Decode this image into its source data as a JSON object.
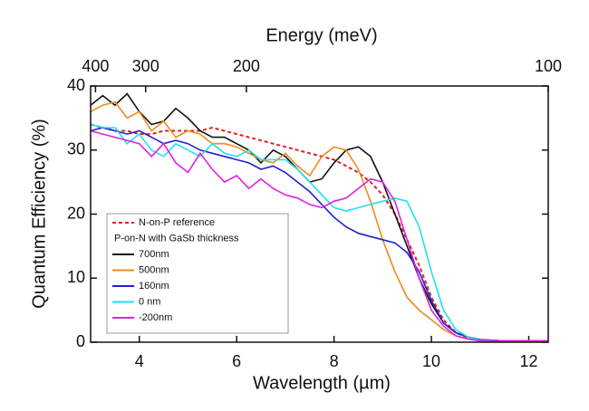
{
  "chart_data": {
    "type": "line",
    "x_label": "Wavelength (µm)",
    "y_label": "Quantum Efficiency (%)",
    "x2_label": "Energy (meV)",
    "xlim": [
      3,
      12.4
    ],
    "xticks": [
      4,
      6,
      8,
      10,
      12
    ],
    "ylim": [
      0,
      40
    ],
    "yticks": [
      0,
      10,
      20,
      30,
      40
    ],
    "x2ticks": [
      {
        "value": 3.1,
        "label": "400"
      },
      {
        "value": 4.13,
        "label": "300"
      },
      {
        "value": 6.2,
        "label": "200"
      },
      {
        "value": 12.4,
        "label": "100"
      }
    ],
    "legend_title": "P-on-N with GaSb thickness",
    "legend_position": "lower left",
    "x": [
      3,
      3.25,
      3.5,
      3.75,
      4,
      4.25,
      4.5,
      4.75,
      5,
      5.25,
      5.5,
      5.75,
      6,
      6.25,
      6.5,
      6.75,
      7,
      7.25,
      7.5,
      7.75,
      8,
      8.25,
      8.5,
      8.75,
      9,
      9.25,
      9.5,
      9.75,
      10,
      10.25,
      10.5,
      10.75,
      11,
      11.5,
      12,
      12.4
    ],
    "series": [
      {
        "name": "N-on-P reference",
        "color": "#e02020",
        "dashed": true,
        "values": [
          34,
          33.5,
          33,
          33,
          32.5,
          32.5,
          33,
          33,
          33,
          33,
          33.5,
          33,
          32.5,
          32,
          31.5,
          31,
          30.5,
          30,
          29.5,
          29,
          28.5,
          27.5,
          26.5,
          25,
          23,
          20,
          16,
          12,
          7,
          3.5,
          1.5,
          0.7,
          0.3,
          0.2,
          0.2,
          0.2
        ]
      },
      {
        "name": "700nm",
        "color": "#111111",
        "values": [
          37,
          38.5,
          37,
          38.8,
          36,
          34,
          34.5,
          36.5,
          35,
          33,
          32,
          32,
          31,
          30,
          28,
          30,
          29,
          27,
          25,
          25.5,
          28,
          30,
          30.5,
          29,
          25,
          20,
          15,
          10,
          6,
          3,
          1.5,
          0.8,
          0.4,
          0.2,
          0.2,
          0.2
        ]
      },
      {
        "name": "500nm",
        "color": "#f08a1c",
        "values": [
          36,
          37,
          37.5,
          35,
          36,
          33,
          34.5,
          32,
          33,
          32.5,
          31,
          31,
          30.5,
          29.5,
          28.5,
          28,
          29.5,
          27.5,
          26,
          29,
          30.5,
          30,
          27,
          22,
          16,
          11,
          7,
          5,
          3.5,
          2,
          1,
          0.5,
          0.3,
          0.2,
          0.2,
          0.2
        ]
      },
      {
        "name": "160nm",
        "color": "#2020d0",
        "values": [
          33,
          33.5,
          33,
          32.5,
          33,
          32,
          31,
          31.5,
          31,
          30,
          29.5,
          29,
          28.5,
          28,
          27,
          27.5,
          26.5,
          25,
          23.5,
          21.5,
          19.5,
          18,
          17,
          16.5,
          16,
          15.5,
          14,
          11,
          6.5,
          3,
          1.5,
          0.8,
          0.4,
          0.2,
          0.2,
          0.2
        ]
      },
      {
        "name": "0 nm",
        "color": "#20e0f0",
        "values": [
          34,
          33.5,
          33.5,
          31,
          32.5,
          30,
          29,
          31,
          30,
          29,
          31,
          29.5,
          29,
          30,
          28.5,
          28.5,
          28.5,
          27,
          25,
          23,
          21,
          20.5,
          21,
          21.5,
          22,
          22.5,
          22,
          18,
          11,
          5,
          2,
          0.8,
          0.3,
          0.2,
          0.2,
          0.2
        ]
      },
      {
        "name": "-200nm",
        "color": "#e020e0",
        "values": [
          33,
          32.5,
          32,
          31.5,
          31,
          29,
          31,
          28,
          26.5,
          29.5,
          27,
          25,
          26,
          24,
          25.5,
          24,
          23,
          22.5,
          21.5,
          21,
          22,
          22.5,
          24,
          25.5,
          25,
          22,
          16,
          10,
          5,
          2.5,
          1,
          0.5,
          0.2,
          0.2,
          0.2,
          0.2
        ]
      }
    ]
  }
}
